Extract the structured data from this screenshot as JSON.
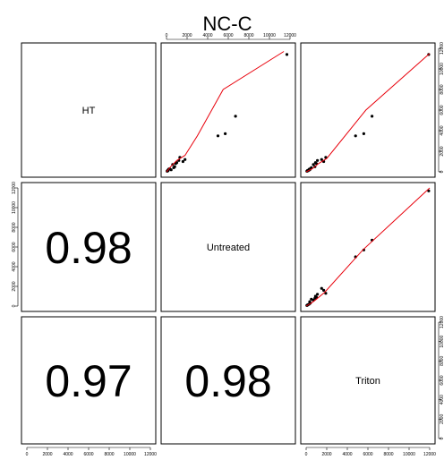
{
  "title": "NC-C",
  "variables": [
    "HT",
    "Untreated",
    "Triton"
  ],
  "axis_ticks": [
    0,
    2000,
    4000,
    6000,
    8000,
    10000,
    12000
  ],
  "correlations": {
    "ut_ht": "0.98",
    "tr_ht": "0.97",
    "tr_ut": "0.98"
  },
  "colors": {
    "points": "#000000",
    "smooth_line": "#e8000b"
  },
  "chart_data": {
    "type": "scatter",
    "title": "NC-C",
    "matrix": "pairs",
    "lim": [
      0,
      12000
    ],
    "points": {
      "HT": [
        11400,
        5400,
        3700,
        3500,
        1400,
        1200,
        1000,
        1100,
        800,
        900,
        500,
        700,
        400,
        300,
        200,
        250,
        100,
        150,
        80,
        60
      ],
      "Untreated": [
        11700,
        6700,
        5700,
        5000,
        1300,
        1800,
        1600,
        1200,
        900,
        1000,
        800,
        600,
        700,
        300,
        450,
        200,
        150,
        120,
        80,
        60
      ],
      "Triton": [
        11900,
        6400,
        5600,
        4800,
        1900,
        1500,
        1700,
        1100,
        1000,
        900,
        850,
        700,
        500,
        400,
        350,
        300,
        200,
        150,
        100,
        70
      ]
    },
    "smooth_lines": [
      {
        "x_var": "HT",
        "y_var": "Untreated",
        "x": [
          0,
          400,
          1000,
          1800,
          3000,
          5500,
          11400
        ],
        "y": [
          0,
          500,
          1100,
          1600,
          3500,
          8000,
          11700
        ]
      },
      {
        "x_var": "Triton",
        "y_var": "HT",
        "x": [
          0,
          600,
          1200,
          2000,
          5800,
          12000
        ],
        "y": [
          0,
          300,
          800,
          1300,
          6000,
          11500
        ]
      },
      {
        "x_var": "Triton",
        "y_var": "Untreated",
        "x": [
          0,
          500,
          1000,
          1800,
          5500,
          12000
        ],
        "y": [
          0,
          300,
          700,
          1400,
          5700,
          12000
        ]
      }
    ]
  }
}
